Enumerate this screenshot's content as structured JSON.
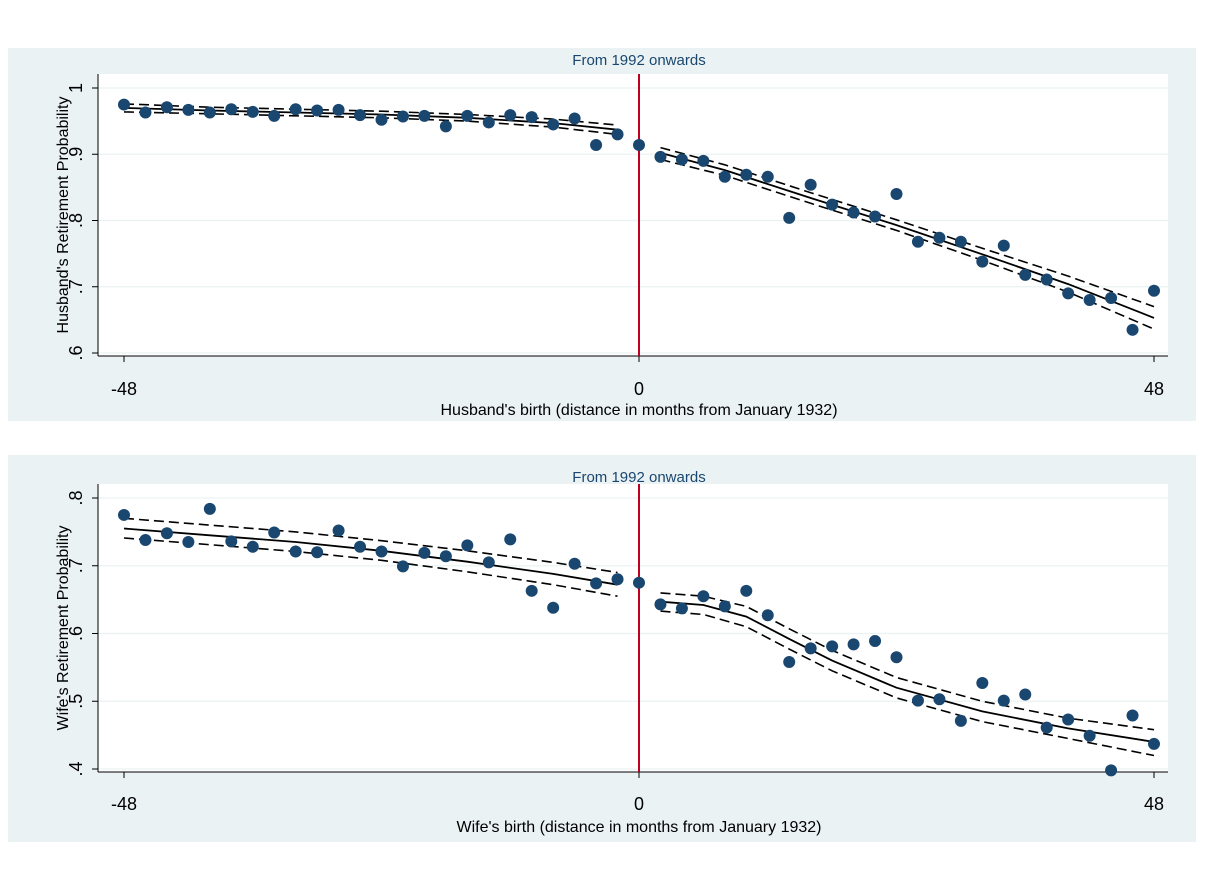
{
  "chart_data": [
    {
      "type": "scatter",
      "title": "From 1992 onwards",
      "xlabel": "Husband's birth (distance in months from  January 1932)",
      "ylabel": "Husband's Retirement Probability",
      "xlim": [
        -48,
        48
      ],
      "ylim": [
        0.6,
        1.0
      ],
      "xticks": [
        -48,
        0,
        48
      ],
      "xtick_labels": [
        "-48",
        "0",
        "48"
      ],
      "yticks": [
        0.6,
        0.7,
        0.8,
        0.9,
        1.0
      ],
      "ytick_labels": [
        ".6",
        ".7",
        ".8",
        ".9",
        "1"
      ],
      "cutoff": 0,
      "grid": true,
      "series": [
        {
          "kind": "points",
          "x": [
            -48,
            -46,
            -44,
            -42,
            -40,
            -38,
            -36,
            -34,
            -32,
            -30,
            -28,
            -26,
            -24,
            -22,
            -20,
            -18,
            -16,
            -14,
            -12,
            -10,
            -8,
            -6,
            -4,
            -2,
            0,
            2,
            4,
            6,
            8,
            10,
            12,
            14,
            16,
            18,
            20,
            22,
            24,
            26,
            28,
            30,
            32,
            34,
            36,
            38,
            40,
            42,
            44,
            46,
            48
          ],
          "y": [
            0.975,
            0.963,
            0.971,
            0.967,
            0.963,
            0.968,
            0.964,
            0.958,
            0.968,
            0.966,
            0.967,
            0.959,
            0.952,
            0.957,
            0.958,
            0.942,
            0.958,
            0.948,
            0.959,
            0.956,
            0.945,
            0.954,
            0.914,
            0.93,
            0.914,
            0.896,
            0.892,
            0.89,
            0.866,
            0.869,
            0.866,
            0.804,
            0.854,
            0.824,
            0.812,
            0.806,
            0.84,
            0.768,
            0.774,
            0.768,
            0.738,
            0.762,
            0.718,
            0.711,
            0.69,
            0.68,
            0.683,
            0.635,
            0.694
          ]
        },
        {
          "kind": "fit-left",
          "x": [
            -48,
            -40,
            -32,
            -24,
            -16,
            -8,
            -2
          ],
          "fit": [
            0.97,
            0.966,
            0.963,
            0.96,
            0.955,
            0.947,
            0.937
          ],
          "upper": [
            0.976,
            0.971,
            0.968,
            0.965,
            0.96,
            0.953,
            0.944
          ],
          "lower": [
            0.964,
            0.961,
            0.958,
            0.955,
            0.95,
            0.941,
            0.93
          ]
        },
        {
          "kind": "fit-right",
          "x": [
            2,
            8,
            16,
            24,
            32,
            40,
            48
          ],
          "fit": [
            0.902,
            0.876,
            0.834,
            0.793,
            0.749,
            0.704,
            0.653
          ],
          "upper": [
            0.91,
            0.884,
            0.842,
            0.801,
            0.758,
            0.716,
            0.67
          ],
          "lower": [
            0.892,
            0.868,
            0.826,
            0.785,
            0.74,
            0.692,
            0.636
          ]
        }
      ]
    },
    {
      "type": "scatter",
      "title": "From 1992 onwards",
      "xlabel": "Wife's birth (distance in months from  January 1932)",
      "ylabel": "Wife's Retirement Probability",
      "xlim": [
        -48,
        48
      ],
      "ylim": [
        0.4,
        0.8
      ],
      "xticks": [
        -48,
        0,
        48
      ],
      "xtick_labels": [
        "-48",
        "0",
        "48"
      ],
      "yticks": [
        0.4,
        0.5,
        0.6,
        0.7,
        0.8
      ],
      "ytick_labels": [
        ".4",
        ".5",
        ".6",
        ".7",
        ".8"
      ],
      "cutoff": 0,
      "grid": true,
      "series": [
        {
          "kind": "points",
          "x": [
            -48,
            -46,
            -44,
            -42,
            -40,
            -38,
            -36,
            -34,
            -32,
            -30,
            -28,
            -26,
            -24,
            -22,
            -20,
            -18,
            -16,
            -14,
            -12,
            -10,
            -8,
            -6,
            -4,
            -2,
            0,
            2,
            4,
            6,
            8,
            10,
            12,
            14,
            16,
            18,
            20,
            22,
            24,
            26,
            28,
            30,
            32,
            34,
            36,
            38,
            40,
            42,
            44,
            46,
            48
          ],
          "y": [
            0.775,
            0.738,
            0.748,
            0.735,
            0.784,
            0.736,
            0.728,
            0.749,
            0.721,
            0.72,
            0.752,
            0.728,
            0.721,
            0.699,
            0.719,
            0.714,
            0.73,
            0.705,
            0.739,
            0.663,
            0.638,
            0.703,
            0.674,
            0.68,
            0.675,
            0.643,
            0.637,
            0.655,
            0.64,
            0.663,
            0.627,
            0.558,
            0.578,
            0.581,
            0.584,
            0.589,
            0.565,
            0.501,
            0.503,
            0.471,
            0.527,
            0.501,
            0.51,
            0.461,
            0.473,
            0.449,
            0.398,
            0.479,
            0.437
          ]
        },
        {
          "kind": "fit-left",
          "x": [
            -48,
            -40,
            -32,
            -24,
            -16,
            -8,
            -2
          ],
          "fit": [
            0.755,
            0.745,
            0.735,
            0.722,
            0.706,
            0.688,
            0.672
          ],
          "upper": [
            0.77,
            0.76,
            0.75,
            0.737,
            0.722,
            0.705,
            0.69
          ],
          "lower": [
            0.741,
            0.731,
            0.721,
            0.708,
            0.691,
            0.672,
            0.655
          ]
        },
        {
          "kind": "fit-right",
          "x": [
            2,
            6,
            10,
            14,
            18,
            24,
            32,
            40,
            48
          ],
          "fit": [
            0.647,
            0.642,
            0.625,
            0.592,
            0.56,
            0.52,
            0.485,
            0.46,
            0.44
          ],
          "upper": [
            0.66,
            0.655,
            0.64,
            0.607,
            0.575,
            0.535,
            0.5,
            0.475,
            0.458
          ],
          "lower": [
            0.633,
            0.628,
            0.61,
            0.577,
            0.545,
            0.505,
            0.47,
            0.445,
            0.42
          ]
        }
      ]
    }
  ]
}
